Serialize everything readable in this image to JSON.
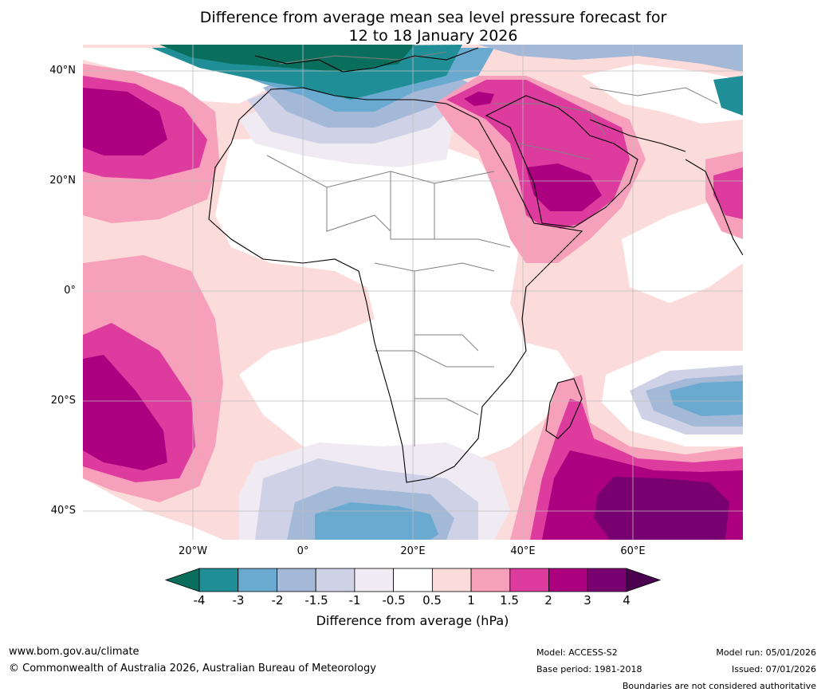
{
  "title": {
    "line1": "Difference from average mean sea level pressure forecast for",
    "line2": "12 to 18 January 2026"
  },
  "map": {
    "region": "Africa, Middle East and surrounding oceans",
    "lat_labels": [
      "40°N",
      "20°N",
      "0°",
      "20°S",
      "40°S"
    ],
    "lon_labels": [
      "20°W",
      "0°",
      "20°E",
      "40°E",
      "60°E"
    ]
  },
  "colorbar": {
    "title": "Difference from average (hPa)",
    "ticks": [
      "-4",
      "-3",
      "-2",
      "-1.5",
      "-1",
      "-0.5",
      "0.5",
      "1",
      "1.5",
      "2",
      "3",
      "4"
    ],
    "colors": [
      "#0a6e5c",
      "#1f8e96",
      "#6aa9d0",
      "#a4b8d8",
      "#cfd2e6",
      "#f0ebf2",
      "#ffffff",
      "#fcdcda",
      "#f7a0bb",
      "#dd3c9e",
      "#ad0080",
      "#780070",
      "#4a004f"
    ]
  },
  "footer": {
    "website": "www.bom.gov.au/climate",
    "copyright": "© Commonwealth of Australia 2026, Australian Bureau of Meteorology",
    "model": "Model: ACCESS-S2",
    "base_period": "Base period: 1981-2018",
    "model_run": "Model run: 05/01/2026",
    "issued": "Issued: 07/01/2026",
    "disclaimer": "Boundaries are not considered authoritative"
  }
}
